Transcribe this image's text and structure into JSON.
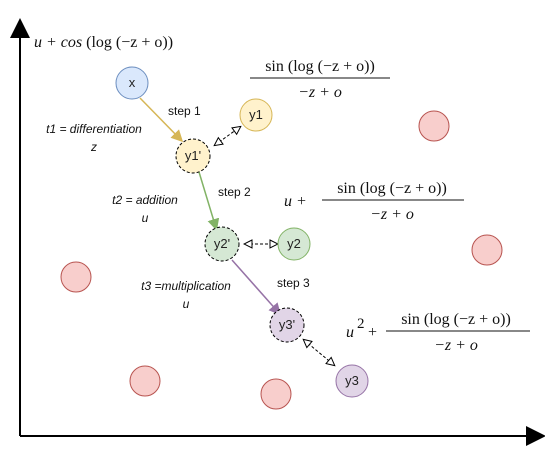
{
  "nodes": {
    "x": "x",
    "y1": "y1",
    "y1p": "y1'",
    "y2": "y2",
    "y2p": "y2'",
    "y3": "y3",
    "y3p": "y3'"
  },
  "steps": {
    "step1": "step 1",
    "step2": "step 2",
    "step3": "step 3"
  },
  "tasks": {
    "t1_line1": "t1 = differentiation",
    "t1_line2": "z",
    "t2_line1": "t2 = addition",
    "t2_line2": "u",
    "t3_line1": "t3 =multiplication",
    "t3_line2": "u"
  },
  "expressions": {
    "top_left": {
      "u_plus": "u + cos",
      "log_part": "(log (−z + o))"
    },
    "y1_expr": {
      "numerator": "sin (log (−z + o))",
      "denominator": "−z + o"
    },
    "y2_expr": {
      "prefix": "u +",
      "numerator": "sin (log (−z + o))",
      "denominator": "−z + o"
    },
    "y3_expr": {
      "prefix_base": "u",
      "prefix_exp": "2",
      "plus": "+",
      "numerator": "sin (log (−z + o))",
      "denominator": "−z + o"
    }
  },
  "colors": {
    "x_fill": "#dae8fc",
    "x_stroke": "#6c8ebf",
    "y1_fill": "#fff2cc",
    "y1_stroke": "#d6b656",
    "y2_fill": "#d5e8d4",
    "y2_stroke": "#82b366",
    "y3_fill": "#e1d5e7",
    "y3_stroke": "#9673a6",
    "red_fill": "#f8cecc",
    "red_stroke": "#b85450",
    "arrow1": "#d6b656",
    "arrow2": "#82b366",
    "arrow3": "#9673a6"
  }
}
